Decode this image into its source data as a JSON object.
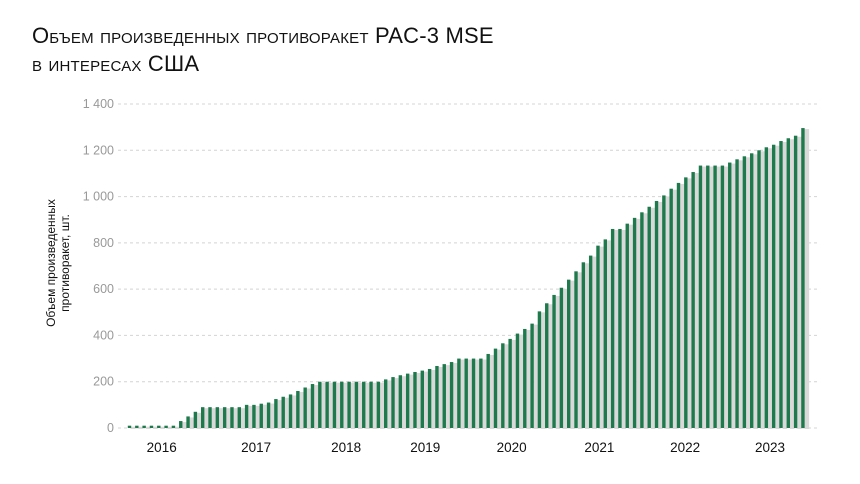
{
  "chart_data": {
    "type": "bar",
    "title_line1": "Объем произведенных противоракет PAC-3 MSE",
    "title_line2": "в интересах США",
    "xlabel": "",
    "ylabel_line1": "Объем произведенных",
    "ylabel_line2": "противоракет, шт.",
    "ylim": [
      0,
      1400
    ],
    "yticks": [
      0,
      200,
      400,
      600,
      800,
      1000,
      1200,
      1400
    ],
    "ytick_labels": [
      "0",
      "200",
      "400",
      "600",
      "800",
      "1 000",
      "1 200",
      "1 400"
    ],
    "grid": "horizontal dashed",
    "bar_color": "#1e7a4c",
    "xticks": [
      {
        "label": "2016",
        "at_bar": 4.4
      },
      {
        "label": "2017",
        "at_bar": 17.3
      },
      {
        "label": "2018",
        "at_bar": 29.6
      },
      {
        "label": "2019",
        "at_bar": 40.4
      },
      {
        "label": "2020",
        "at_bar": 52.2
      },
      {
        "label": "2021",
        "at_bar": 64.2
      },
      {
        "label": "2022",
        "at_bar": 75.9
      },
      {
        "label": "2023",
        "at_bar": 87.5
      }
    ],
    "values": [
      10,
      10,
      10,
      10,
      10,
      10,
      10,
      30,
      50,
      70,
      90,
      90,
      90,
      90,
      90,
      90,
      100,
      100,
      105,
      110,
      125,
      135,
      145,
      160,
      175,
      190,
      200,
      200,
      200,
      200,
      200,
      200,
      200,
      200,
      200,
      210,
      220,
      228,
      235,
      242,
      248,
      255,
      268,
      276,
      285,
      300,
      300,
      300,
      300,
      320,
      343,
      366,
      385,
      408,
      428,
      451,
      504,
      539,
      575,
      606,
      641,
      677,
      716,
      745,
      788,
      815,
      860,
      860,
      883,
      908,
      932,
      956,
      981,
      1005,
      1034,
      1059,
      1083,
      1106,
      1134,
      1134,
      1134,
      1134,
      1147,
      1161,
      1174,
      1187,
      1200,
      1213,
      1224,
      1240,
      1252,
      1263,
      1296
    ]
  }
}
